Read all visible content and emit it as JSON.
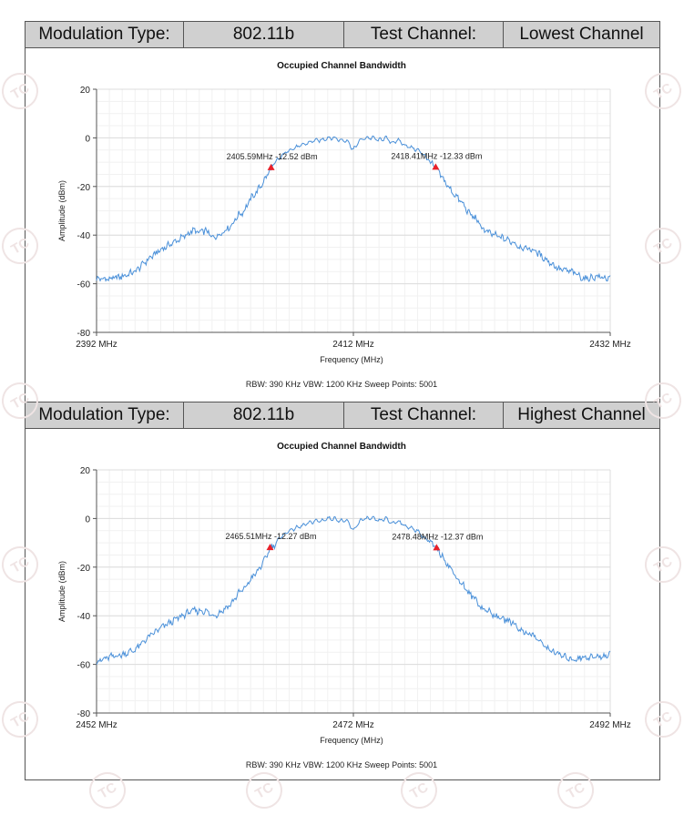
{
  "panels": [
    {
      "header": {
        "modulation_label": "Modulation Type:",
        "modulation_value": "802.11b",
        "channel_label": "Test Channel:",
        "channel_value": "Lowest Channel"
      },
      "chart_data": {
        "type": "line",
        "title": "Occupied Channel Bandwidth",
        "xlabel": "Frequency (MHz)",
        "ylabel": "Amplitude (dBm)",
        "xlim": [
          2392,
          2432
        ],
        "ylim": [
          -80,
          20
        ],
        "yticks": [
          20,
          0,
          -20,
          -40,
          -60,
          -80
        ],
        "xtick_labels": [
          {
            "x": 2392,
            "label": "2392 MHz"
          },
          {
            "x": 2412,
            "label": "2412 MHz"
          },
          {
            "x": 2432,
            "label": "2432 MHz"
          }
        ],
        "grid": true,
        "series": [
          {
            "x": [
              2392,
              2393,
              2394,
              2395,
              2396,
              2397,
              2398,
              2399,
              2399.5,
              2400,
              2400.5,
              2401,
              2401.5,
              2402,
              2402.5,
              2403,
              2403.5,
              2404,
              2404.5,
              2405,
              2405.59,
              2406,
              2406.5,
              2407,
              2407.5,
              2408,
              2408.5,
              2409,
              2409.5,
              2410,
              2410.5,
              2411,
              2411.5,
              2412,
              2412.5,
              2413,
              2413.5,
              2414,
              2414.5,
              2415,
              2415.5,
              2416,
              2416.5,
              2417,
              2417.5,
              2418,
              2418.41,
              2419,
              2419.5,
              2420,
              2420.5,
              2421,
              2421.5,
              2422,
              2422.5,
              2423,
              2423.5,
              2424,
              2424.5,
              2425,
              2426,
              2427,
              2428,
              2429,
              2430,
              2431,
              2432
            ],
            "y": [
              -58,
              -58,
              -57,
              -55,
              -50,
              -46,
              -43,
              -40,
              -38,
              -39,
              -38,
              -41,
              -40,
              -38,
              -36,
              -32,
              -30,
              -25,
              -22,
              -18,
              -12.52,
              -10,
              -7,
              -5,
              -4,
              -3,
              -2,
              -1,
              -1,
              0,
              0,
              -1,
              -1,
              -5,
              -1,
              0,
              0,
              -1,
              0,
              -2,
              -1,
              -3,
              -4,
              -5,
              -7,
              -10,
              -12.33,
              -17,
              -21,
              -24,
              -27,
              -31,
              -33,
              -37,
              -39,
              -40,
              -41,
              -42,
              -43,
              -45,
              -46,
              -50,
              -54,
              -55,
              -58,
              -57,
              -58
            ]
          }
        ],
        "markers": [
          {
            "x": 2405.59,
            "y": -12.52,
            "label": "2405.59MHz -12.52 dBm"
          },
          {
            "x": 2418.41,
            "y": -12.33,
            "label": "2418.41MHz -12.33 dBm"
          }
        ],
        "footer": "RBW: 390 KHz    VBW: 1200 KHz    Sweep Points: 5001"
      }
    },
    {
      "header": {
        "modulation_label": "Modulation Type:",
        "modulation_value": "802.11b",
        "channel_label": "Test Channel:",
        "channel_value": "Highest Channel"
      },
      "chart_data": {
        "type": "line",
        "title": "Occupied Channel Bandwidth",
        "xlabel": "Frequency (MHz)",
        "ylabel": "Amplitude (dBm)",
        "xlim": [
          2452,
          2492
        ],
        "ylim": [
          -80,
          20
        ],
        "yticks": [
          20,
          0,
          -20,
          -40,
          -60,
          -80
        ],
        "xtick_labels": [
          {
            "x": 2452,
            "label": "2452 MHz"
          },
          {
            "x": 2472,
            "label": "2472 MHz"
          },
          {
            "x": 2492,
            "label": "2492 MHz"
          }
        ],
        "grid": true,
        "series": [
          {
            "x": [
              2452,
              2453,
              2454,
              2455,
              2456,
              2457,
              2458,
              2459,
              2459.5,
              2460,
              2460.5,
              2461,
              2461.5,
              2462,
              2462.5,
              2463,
              2463.5,
              2464,
              2464.5,
              2465,
              2465.51,
              2466,
              2466.5,
              2467,
              2467.5,
              2468,
              2468.5,
              2469,
              2469.5,
              2470,
              2470.5,
              2471,
              2471.5,
              2472,
              2472.5,
              2473,
              2473.5,
              2474,
              2474.5,
              2475,
              2475.5,
              2476,
              2476.5,
              2477,
              2477.5,
              2478,
              2478.48,
              2479,
              2479.5,
              2480,
              2480.5,
              2481,
              2481.5,
              2482,
              2482.5,
              2483,
              2483.5,
              2484,
              2484.5,
              2485,
              2486,
              2487,
              2488,
              2489,
              2490,
              2491,
              2492
            ],
            "y": [
              -59,
              -57,
              -56,
              -54,
              -49,
              -45,
              -42,
              -39,
              -38,
              -38,
              -38,
              -40,
              -39,
              -37,
              -35,
              -31,
              -29,
              -25,
              -22,
              -18,
              -12.27,
              -10,
              -7,
              -5,
              -4,
              -3,
              -2,
              -1,
              -1,
              0,
              0,
              -1,
              -1,
              -5,
              -1,
              0,
              0,
              -1,
              0,
              -2,
              -1,
              -3,
              -4,
              -5,
              -8,
              -10,
              -12.37,
              -16,
              -20,
              -24,
              -27,
              -31,
              -33,
              -37,
              -38,
              -40,
              -41,
              -42,
              -43,
              -46,
              -48,
              -53,
              -56,
              -58,
              -57,
              -57,
              -56
            ]
          }
        ],
        "markers": [
          {
            "x": 2465.51,
            "y": -12.27,
            "label": "2465.51MHz -12.27 dBm"
          },
          {
            "x": 2478.48,
            "y": -12.37,
            "label": "2478.48MHz -12.37 dBm"
          }
        ],
        "footer": "RBW: 390 KHz    VBW: 1200 KHz    Sweep Points: 5001"
      }
    }
  ],
  "watermark": "TC",
  "colors": {
    "trace": "#4a90d9",
    "marker": "#e8202a",
    "header_bg": "#d0d0d0",
    "grid": "#e6e6e6"
  }
}
